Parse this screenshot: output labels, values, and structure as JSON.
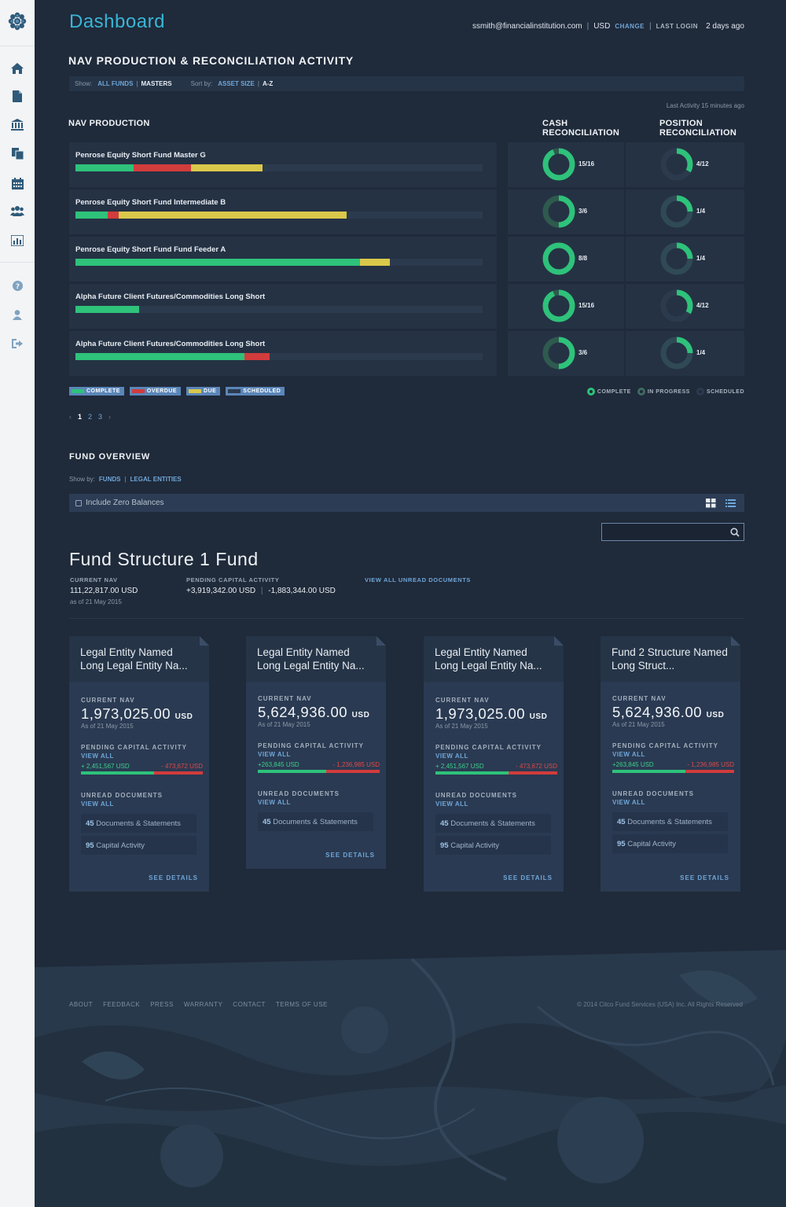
{
  "sidebar": {
    "icons": [
      "flower-logo-icon",
      "home-icon",
      "document-icon",
      "bank-icon",
      "copy-icon",
      "calendar-icon",
      "users-icon",
      "bar-chart-icon",
      "help-icon",
      "user-icon",
      "sign-out-icon"
    ]
  },
  "header": {
    "title": "Dashboard",
    "email": "ssmith@financialinstitution.com",
    "currency": "USD",
    "change": "CHANGE",
    "last_login_label": "LAST LOGIN",
    "last_login": "2 days ago"
  },
  "nav_section": {
    "title": "NAV PRODUCTION & RECONCILIATION ACTIVITY",
    "show_label": "Show:",
    "show_all": "ALL FUNDS",
    "show_masters": "MASTERS",
    "sort_label": "Sort by:",
    "sort_asset": "ASSET SIZE",
    "sort_az": "A-Z",
    "last_activity": "Last Activity 15 minutes ago",
    "nav_production": "NAV PRODUCTION",
    "cash_rec": "CASH RECONCILIATION",
    "pos_rec": "POSITION RECONCILIATION",
    "rows": [
      {
        "name": "Penrose Equity Short Fund Master G",
        "complete": 0.142,
        "overdue": 0.142,
        "due": 0.176,
        "cash": "15/16",
        "cash_frac": 0.9375,
        "pos": "4/12",
        "pos_frac": 0.3333
      },
      {
        "name": "Penrose Equity Short Fund Intermediate B",
        "complete": 0.079,
        "overdue": 0.027,
        "due": 0.56,
        "cash": "3/6",
        "cash_frac": 0.5,
        "pos": "1/4",
        "pos_frac": 0.25
      },
      {
        "name": "Penrose Equity Short Fund Fund Feeder A",
        "complete": 0.698,
        "overdue": 0,
        "due": 0.074,
        "cash": "8/8",
        "cash_frac": 1,
        "pos": "1/4",
        "pos_frac": 0.25
      },
      {
        "name": "Alpha Future Client Futures/Commodities Long Short",
        "complete": 0.156,
        "overdue": 0,
        "due": 0,
        "cash": "15/16",
        "cash_frac": 0.9375,
        "pos": "4/12",
        "pos_frac": 0.3333
      },
      {
        "name": "Alpha Future Client Futures/Commodities Long Short",
        "complete": 0.415,
        "overdue": 0.062,
        "due": 0,
        "cash": "3/6",
        "cash_frac": 0.5,
        "pos": "1/4",
        "pos_frac": 0.25
      }
    ],
    "legend": [
      "COMPLETE",
      "OVERDUE",
      "DUE",
      "SCHEDULED"
    ],
    "status_legend": [
      "COMPLETE",
      "IN PROGRESS",
      "SCHEDULED"
    ],
    "pages": [
      "1",
      "2",
      "3"
    ],
    "prev": "‹",
    "next": "›"
  },
  "fund_overview": {
    "title": "FUND OVERVIEW",
    "show_label": "Show by:",
    "funds": "FUNDS",
    "legal": "LEGAL ENTITIES",
    "zero_balances": "Include Zero Balances"
  },
  "fund": {
    "title": "Fund Structure 1 Fund",
    "nav_label": "CURRENT NAV",
    "nav": "111,22,817.00 USD",
    "nav_date": "as of 21 May 2015",
    "pending_label": "PENDING CAPITAL ACTIVITY",
    "pending_plus": "+3,919,342.00 USD",
    "pending_minus": "-1,883,344.00 USD",
    "view_unread": "VIEW ALL UNREAD DOCUMENTS"
  },
  "cards": [
    {
      "title": "Legal Entity Named Long Legal Entity Na...",
      "nav_label": "CURRENT NAV",
      "nav": "1,973,025.00",
      "unit": "USD",
      "date": "As of 21 May 2015",
      "pending_label": "PENDING CAPITAL ACTIVITY",
      "view_all": "VIEW ALL",
      "plus": "+ 2,451,567 USD",
      "minus": "- 473,672  USD",
      "plus_frac": 0.6,
      "unread_label": "UNREAD DOCUMENTS",
      "unread_view": "VIEW ALL",
      "docs_num": "45",
      "docs_text": "Documents & Statements",
      "cap_num": "95",
      "cap_text": "Capital Activity",
      "see": "SEE DETAILS"
    },
    {
      "title": "Legal Entity Named Long Legal Entity Na...",
      "nav_label": "CURRENT NAV",
      "nav": "5,624,936.00",
      "unit": "USD",
      "date": "As of 21 May 2015",
      "pending_label": "PENDING CAPITAL ACTIVITY",
      "view_all": "VIEW ALL",
      "plus": "+263,845 USD",
      "minus": "- 1,236,985 USD",
      "plus_frac": 0.56,
      "unread_label": "UNREAD DOCUMENTS",
      "unread_view": "VIEW ALL",
      "docs_num": "45",
      "docs_text": "Documents & Statements",
      "cap_num": "",
      "cap_text": "",
      "see": "SEE DETAILS"
    },
    {
      "title": "Legal Entity Named Long Legal Entity Na...",
      "nav_label": "CURRENT NAV",
      "nav": "1,973,025.00",
      "unit": "USD",
      "date": "As of 21 May 2015",
      "pending_label": "PENDING CAPITAL ACTIVITY",
      "view_all": "VIEW ALL",
      "plus": "+ 2,451,567 USD",
      "minus": "- 473,672  USD",
      "plus_frac": 0.6,
      "unread_label": "UNREAD DOCUMENTS",
      "unread_view": "VIEW ALL",
      "docs_num": "45",
      "docs_text": "Documents & Statements",
      "cap_num": "95",
      "cap_text": "Capital Activity",
      "see": "SEE DETAILS"
    },
    {
      "title": "Fund 2 Structure Named Long Struct...",
      "nav_label": "CURRENT NAV",
      "nav": "5,624,936.00",
      "unit": "USD",
      "date": "As of 21 May 2015",
      "pending_label": "PENDING CAPITAL ACTIVITY",
      "view_all": "VIEW ALL",
      "plus": "+263,845 USD",
      "minus": "- 1,236,985 USD",
      "plus_frac": 0.6,
      "unread_label": "UNREAD DOCUMENTS",
      "unread_view": "VIEW ALL",
      "docs_num": "45",
      "docs_text": "Documents & Statements",
      "cap_num": "95",
      "cap_text": "Capital Activity",
      "see": "SEE DETAILS"
    }
  ],
  "footer": {
    "links": [
      "ABOUT",
      "FEEDBACK",
      "PRESS",
      "WARRANTY",
      "CONTACT",
      "TERMS OF USE"
    ],
    "copyright": "© 2014 Citco Fund Services (USA) Inc. All Rights Reserved"
  },
  "colors": {
    "complete": "#2ec27a",
    "overdue": "#d13c3c",
    "due": "#d9c84a",
    "scheduled": "#2c3a4e",
    "accent": "#39b6d6",
    "link": "#6fa6d8"
  }
}
